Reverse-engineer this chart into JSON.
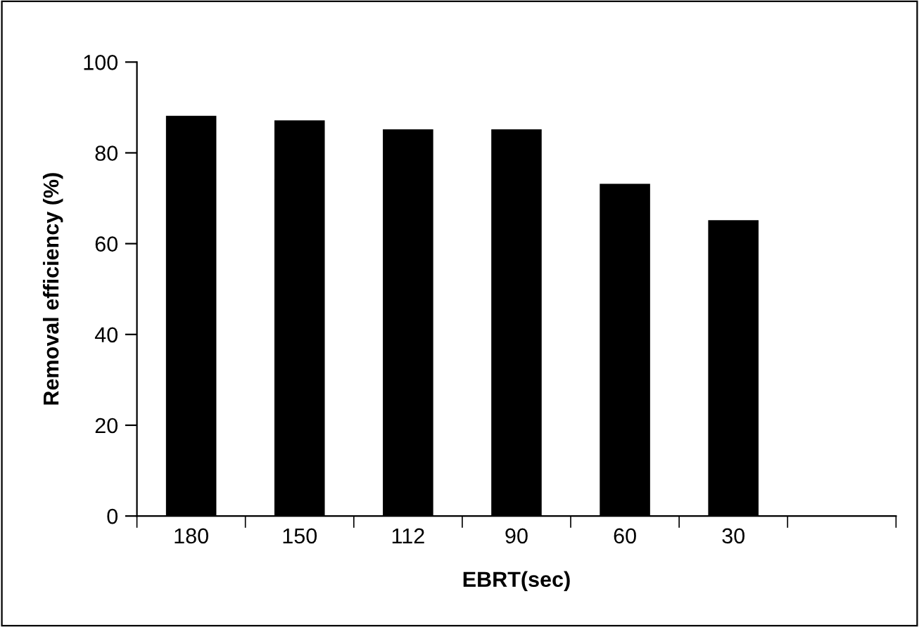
{
  "chart_data": {
    "type": "bar",
    "xlabel": "EBRT(sec)",
    "ylabel": "Removal efficiency (%)",
    "categories": [
      "180",
      "150",
      "112",
      "90",
      "60",
      "30",
      null
    ],
    "values": [
      88,
      87,
      85,
      85,
      73,
      65,
      null
    ],
    "color": "#000000",
    "ylim": [
      0,
      100
    ],
    "yticks": [
      0,
      20,
      40,
      60,
      80,
      100
    ],
    "grid": false,
    "legend": false
  }
}
